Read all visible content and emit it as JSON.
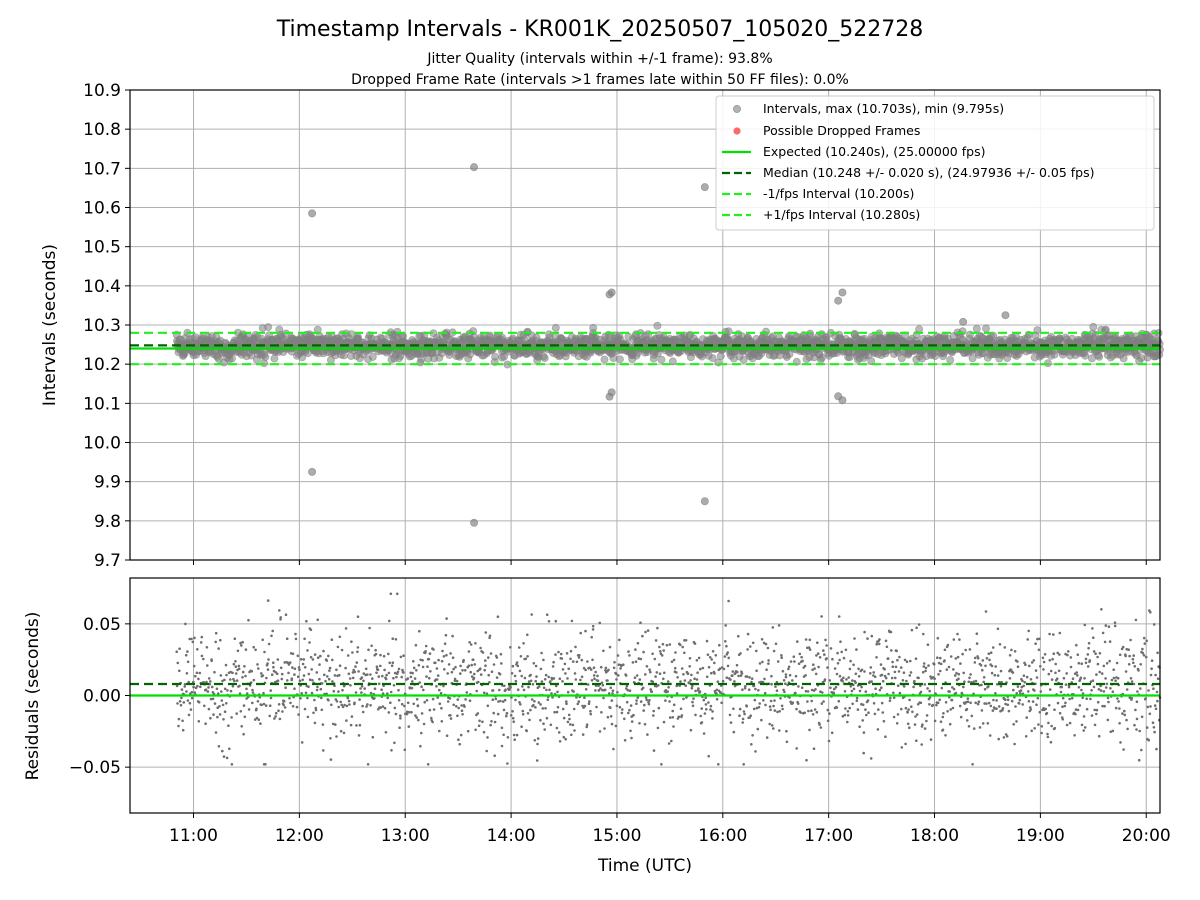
{
  "title": "Timestamp Intervals - KR001K_20250507_105020_522728",
  "subtitle_lines": [
    "Jitter Quality (intervals within +/-1 frame): 93.8%",
    "Dropped Frame Rate (intervals >1 frames late within 50 FF files): 0.0%"
  ],
  "colors": {
    "scatter": "#808080",
    "dropped": "#ff4d4d",
    "expected": "#00e000",
    "median": "#006400",
    "bounds": "#22ee22",
    "grid": "#b0b0b0"
  },
  "chart_data": [
    {
      "type": "scatter",
      "name": "intervals-panel",
      "xlabel": "",
      "ylabel": "Intervals (seconds)",
      "xlim_hours": [
        10.4,
        20.13
      ],
      "ylim": [
        9.7,
        10.9
      ],
      "yticks": [
        "9.7",
        "9.8",
        "9.9",
        "10.0",
        "10.1",
        "10.2",
        "10.3",
        "10.4",
        "10.5",
        "10.6",
        "10.7",
        "10.8",
        "10.9"
      ],
      "yticks_values": [
        9.7,
        9.8,
        9.9,
        10.0,
        10.1,
        10.2,
        10.3,
        10.4,
        10.5,
        10.6,
        10.7,
        10.8,
        10.9
      ],
      "grid": true,
      "legend_position": "top-right",
      "legend": [
        {
          "label": "Intervals, max (10.703s), min (9.795s)",
          "style": "dot-gray"
        },
        {
          "label": "Possible Dropped Frames",
          "style": "dot-red"
        },
        {
          "label": "Expected (10.240s), (25.00000 fps)",
          "style": "line-expected"
        },
        {
          "label": "Median (10.248 +/- 0.020 s), (24.97936 +/- 0.05 fps)",
          "style": "dash-median"
        },
        {
          "label": "-1/fps Interval (10.200s)",
          "style": "dash-bounds"
        },
        {
          "label": "+1/fps Interval (10.280s)",
          "style": "dash-bounds"
        }
      ],
      "expected": 10.24,
      "median": 10.248,
      "median_std": 0.02,
      "lower_bound": 10.2,
      "upper_bound": 10.28,
      "max": 10.703,
      "min": 9.795,
      "time_range_hours": [
        10.84,
        20.13
      ],
      "outliers": [
        {
          "t": 12.12,
          "v": 10.585
        },
        {
          "t": 12.12,
          "v": 9.925
        },
        {
          "t": 13.65,
          "v": 10.703
        },
        {
          "t": 13.65,
          "v": 9.795
        },
        {
          "t": 14.93,
          "v": 10.378
        },
        {
          "t": 14.95,
          "v": 10.383
        },
        {
          "t": 14.93,
          "v": 10.117
        },
        {
          "t": 14.95,
          "v": 10.128
        },
        {
          "t": 15.83,
          "v": 10.652
        },
        {
          "t": 15.83,
          "v": 9.85
        },
        {
          "t": 17.13,
          "v": 10.383
        },
        {
          "t": 17.09,
          "v": 10.362
        },
        {
          "t": 17.09,
          "v": 10.118
        },
        {
          "t": 17.13,
          "v": 10.108
        },
        {
          "t": 18.67,
          "v": 10.325
        },
        {
          "t": 18.27,
          "v": 10.308
        }
      ],
      "dropped_frames": []
    },
    {
      "type": "scatter",
      "name": "residuals-panel",
      "xlabel": "Time (UTC)",
      "ylabel": "Residuals (seconds)",
      "xlim_hours": [
        10.4,
        20.13
      ],
      "ylim": [
        -0.082,
        0.082
      ],
      "xticks": [
        "11:00",
        "12:00",
        "13:00",
        "14:00",
        "15:00",
        "16:00",
        "17:00",
        "18:00",
        "19:00",
        "20:00"
      ],
      "xticks_hours": [
        11,
        12,
        13,
        14,
        15,
        16,
        17,
        18,
        19,
        20
      ],
      "yticks": [
        "−0.05",
        "0.00",
        "0.05"
      ],
      "yticks_values": [
        -0.05,
        0.0,
        0.05
      ],
      "grid": true,
      "zero_line": 0.0,
      "median_offset": 0.008,
      "residual_spread": {
        "min": -0.048,
        "max": 0.071
      }
    }
  ]
}
